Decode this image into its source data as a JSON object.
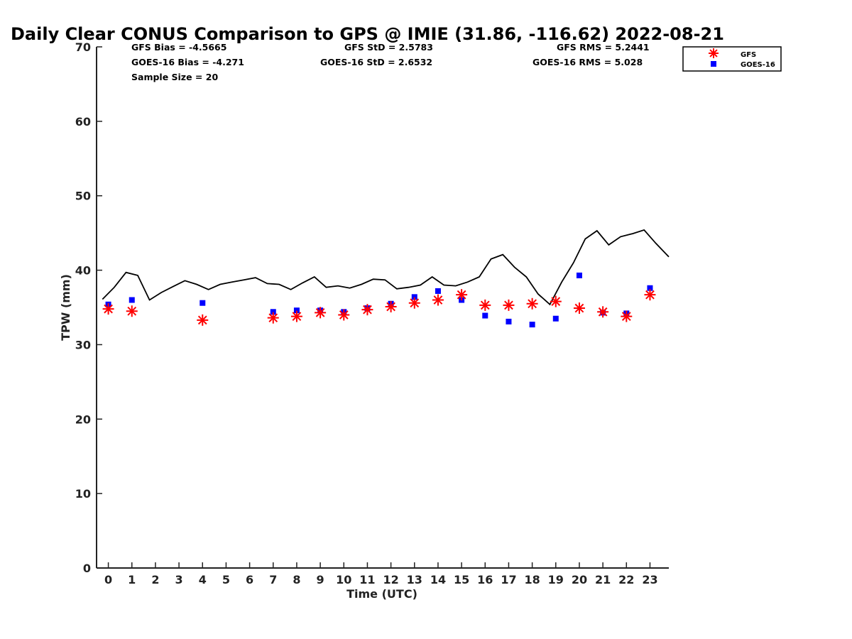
{
  "chart_data": {
    "type": "scatter",
    "title": "Daily Clear CONUS Comparison to GPS @ IMIE (31.86, -116.62) 2022-08-21",
    "xlabel": "Time (UTC)",
    "ylabel": "TPW (mm)",
    "xlim": [
      -0.5,
      23.8
    ],
    "ylim": [
      0,
      70
    ],
    "xticks": [
      "0",
      "1",
      "2",
      "3",
      "4",
      "5",
      "6",
      "7",
      "8",
      "9",
      "10",
      "11",
      "12",
      "13",
      "14",
      "15",
      "16",
      "17",
      "18",
      "19",
      "20",
      "21",
      "22",
      "23"
    ],
    "yticks": [
      "0",
      "10",
      "20",
      "30",
      "40",
      "50",
      "60",
      "70"
    ],
    "grid": false,
    "legend_position": "top-right",
    "stats": {
      "gfs_bias": "GFS Bias = -4.5665",
      "gfs_std": "GFS StD = 2.5783",
      "gfs_rms": "GFS RMS = 5.2441",
      "goes_bias": "GOES-16 Bias = -4.271",
      "goes_std": "GOES-16 StD = 2.6532",
      "goes_rms": "GOES-16 RMS = 5.028",
      "sample_size": "Sample Size = 20"
    },
    "gps_line": {
      "color": "#000000",
      "x": [
        -0.25,
        0.25,
        0.75,
        1.25,
        1.75,
        2.25,
        2.75,
        3.25,
        3.75,
        4.25,
        4.75,
        5.25,
        5.75,
        6.25,
        6.75,
        7.25,
        7.75,
        8.25,
        8.75,
        9.25,
        9.75,
        10.25,
        10.75,
        11.25,
        11.75,
        12.25,
        12.75,
        13.25,
        13.75,
        14.25,
        14.75,
        15.25,
        15.75,
        16.25,
        16.75,
        17.25,
        17.75,
        18.25,
        18.75,
        19.25,
        19.75,
        20.25,
        20.75,
        21.25,
        21.75,
        22.25,
        22.75,
        23.25,
        23.8
      ],
      "y": [
        36.1,
        37.7,
        39.7,
        39.3,
        36.0,
        37.0,
        37.8,
        38.6,
        38.1,
        37.4,
        38.1,
        38.4,
        38.7,
        39.0,
        38.2,
        38.1,
        37.4,
        38.3,
        39.1,
        37.7,
        37.9,
        37.6,
        38.1,
        38.8,
        38.7,
        37.5,
        37.7,
        38.0,
        39.1,
        38.0,
        37.9,
        38.4,
        39.1,
        41.5,
        42.1,
        40.4,
        39.1,
        36.8,
        35.4,
        38.4,
        41.0,
        44.2,
        45.3,
        43.4,
        44.5,
        44.9,
        45.4,
        43.6,
        41.8
      ]
    },
    "series": [
      {
        "name": "GFS",
        "marker": "asterisk",
        "color": "#ff0000",
        "x": [
          0,
          1,
          4,
          7,
          8,
          9,
          10,
          11,
          12,
          13,
          14,
          15,
          16,
          17,
          18,
          19,
          20,
          21,
          22,
          23
        ],
        "y": [
          34.8,
          34.5,
          33.3,
          33.6,
          33.8,
          34.3,
          34.0,
          34.7,
          35.1,
          35.6,
          36.0,
          36.7,
          35.3,
          35.3,
          35.5,
          35.8,
          34.9,
          34.4,
          33.8,
          36.7
        ]
      },
      {
        "name": "GOES-16",
        "marker": "square",
        "color": "#0000ff",
        "x": [
          0,
          1,
          4,
          7,
          8,
          9,
          10,
          11,
          12,
          13,
          14,
          15,
          16,
          17,
          18,
          19,
          20,
          21,
          22,
          23
        ],
        "y": [
          35.4,
          36.0,
          35.6,
          34.4,
          34.6,
          34.6,
          34.4,
          34.9,
          35.5,
          36.4,
          37.2,
          36.0,
          33.9,
          33.1,
          32.7,
          33.5,
          39.3,
          34.3,
          34.2,
          37.6
        ]
      }
    ]
  }
}
